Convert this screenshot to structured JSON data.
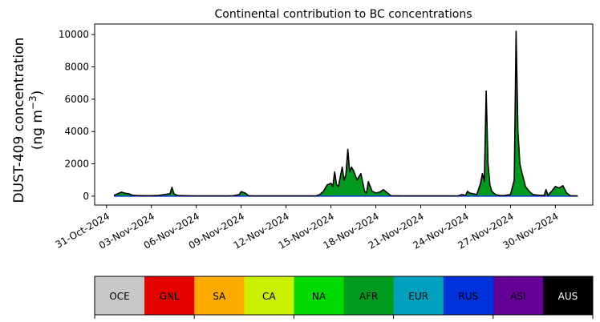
{
  "chart_data": {
    "type": "area",
    "title": "Continental contribution to BC concentrations",
    "ylabel_line1": "DUST-409 concentration",
    "ylabel_line2_prefix": "(ng m",
    "ylabel_line2_sup": "−3",
    "ylabel_line2_suffix": ")",
    "ylim": [
      -550,
      10650
    ],
    "yticks": [
      0,
      2000,
      4000,
      6000,
      8000,
      10000
    ],
    "xlim": [
      "2024-10-30T05:00",
      "2024-12-02T12:00"
    ],
    "xticks": [
      "2024-10-31",
      "2024-11-03",
      "2024-11-06",
      "2024-11-09",
      "2024-11-12",
      "2024-11-15",
      "2024-11-18",
      "2024-11-21",
      "2024-11-24",
      "2024-11-27",
      "2024-11-30"
    ],
    "xtick_labels": [
      "31-Oct-2024",
      "03-Nov-2024",
      "06-Nov-2024",
      "09-Nov-2024",
      "12-Nov-2024",
      "15-Nov-2024",
      "18-Nov-2024",
      "21-Nov-2024",
      "24-Nov-2024",
      "27-Nov-2024",
      "30-Nov-2024"
    ],
    "grid": false,
    "total": {
      "x": [
        "2024-10-31T12:00",
        "2024-11-01T00:00",
        "2024-11-01T06:00",
        "2024-11-01T12:00",
        "2024-11-01T18:00",
        "2024-11-02T00:00",
        "2024-11-02T12:00",
        "2024-11-03T00:00",
        "2024-11-03T12:00",
        "2024-11-04T00:00",
        "2024-11-04T06:00",
        "2024-11-04T09:00",
        "2024-11-04T12:00",
        "2024-11-04T18:00",
        "2024-11-05T06:00",
        "2024-11-06T00:00",
        "2024-11-07T00:00",
        "2024-11-08T00:00",
        "2024-11-08T12:00",
        "2024-11-08T21:00",
        "2024-11-09T00:00",
        "2024-11-09T06:00",
        "2024-11-09T12:00",
        "2024-11-10T00:00",
        "2024-11-11T00:00",
        "2024-11-12T00:00",
        "2024-11-13T00:00",
        "2024-11-14T00:00",
        "2024-11-14T06:00",
        "2024-11-14T12:00",
        "2024-11-14T18:00",
        "2024-11-15T00:00",
        "2024-11-15T03:00",
        "2024-11-15T06:00",
        "2024-11-15T09:00",
        "2024-11-15T12:00",
        "2024-11-15T18:00",
        "2024-11-15T21:00",
        "2024-11-16T00:00",
        "2024-11-16T03:00",
        "2024-11-16T06:00",
        "2024-11-16T09:00",
        "2024-11-16T12:00",
        "2024-11-16T18:00",
        "2024-11-17T00:00",
        "2024-11-17T06:00",
        "2024-11-17T09:00",
        "2024-11-17T12:00",
        "2024-11-17T18:00",
        "2024-11-18T00:00",
        "2024-11-18T06:00",
        "2024-11-18T12:00",
        "2024-11-19T00:00",
        "2024-11-20T00:00",
        "2024-11-21T00:00",
        "2024-11-22T00:00",
        "2024-11-23T00:00",
        "2024-11-23T12:00",
        "2024-11-23T18:00",
        "2024-11-24T00:00",
        "2024-11-24T03:00",
        "2024-11-24T06:00",
        "2024-11-24T12:00",
        "2024-11-24T18:00",
        "2024-11-25T00:00",
        "2024-11-25T03:00",
        "2024-11-25T06:00",
        "2024-11-25T09:00",
        "2024-11-25T12:00",
        "2024-11-25T15:00",
        "2024-11-25T18:00",
        "2024-11-25T21:00",
        "2024-11-26T00:00",
        "2024-11-26T06:00",
        "2024-11-26T12:00",
        "2024-11-27T00:00",
        "2024-11-27T06:00",
        "2024-11-27T09:00",
        "2024-11-27T12:00",
        "2024-11-27T15:00",
        "2024-11-27T18:00",
        "2024-11-28T00:00",
        "2024-11-28T06:00",
        "2024-11-28T12:00",
        "2024-11-29T00:00",
        "2024-11-29T06:00",
        "2024-11-29T09:00",
        "2024-11-29T12:00",
        "2024-11-29T18:00",
        "2024-11-30T00:00",
        "2024-11-30T06:00",
        "2024-11-30T12:00",
        "2024-11-30T18:00",
        "2024-12-01T00:00",
        "2024-12-01T12:00"
      ],
      "values": [
        50,
        250,
        180,
        150,
        60,
        40,
        30,
        30,
        50,
        120,
        150,
        550,
        150,
        40,
        30,
        20,
        20,
        20,
        30,
        100,
        280,
        200,
        30,
        20,
        20,
        20,
        20,
        20,
        100,
        300,
        700,
        800,
        600,
        1500,
        700,
        600,
        1800,
        1000,
        1300,
        2900,
        1500,
        1800,
        1600,
        1000,
        1400,
        300,
        200,
        900,
        300,
        200,
        250,
        400,
        30,
        20,
        20,
        20,
        20,
        20,
        100,
        50,
        300,
        200,
        150,
        100,
        800,
        1400,
        900,
        6500,
        2000,
        700,
        300,
        200,
        100,
        50,
        30,
        100,
        1000,
        10200,
        4000,
        2000,
        1500,
        600,
        300,
        100,
        50,
        50,
        400,
        50,
        300,
        600,
        500,
        650,
        200,
        30,
        20
      ]
    },
    "series": [
      {
        "name": "OCE",
        "color": "#c8c8c8"
      },
      {
        "name": "GNL",
        "color": "#e60000"
      },
      {
        "name": "SA",
        "color": "#ffaa00"
      },
      {
        "name": "CA",
        "color": "#c8f000"
      },
      {
        "name": "NA",
        "color": "#00dc00"
      },
      {
        "name": "AFR",
        "color": "#009b1e"
      },
      {
        "name": "EUR",
        "color": "#00a0be"
      },
      {
        "name": "RUS",
        "color": "#0032dc"
      },
      {
        "name": "ASI",
        "color": "#640096"
      },
      {
        "name": "AUS",
        "color": "#000000"
      }
    ],
    "legend_text_colors": [
      "#000000",
      "#000000",
      "#000000",
      "#000000",
      "#000000",
      "#000000",
      "#000000",
      "#000000",
      "#000000",
      "#ffffff"
    ],
    "fill_color": "#009b1e",
    "line_color": "#000000",
    "base_line_color": "#0032dc"
  }
}
